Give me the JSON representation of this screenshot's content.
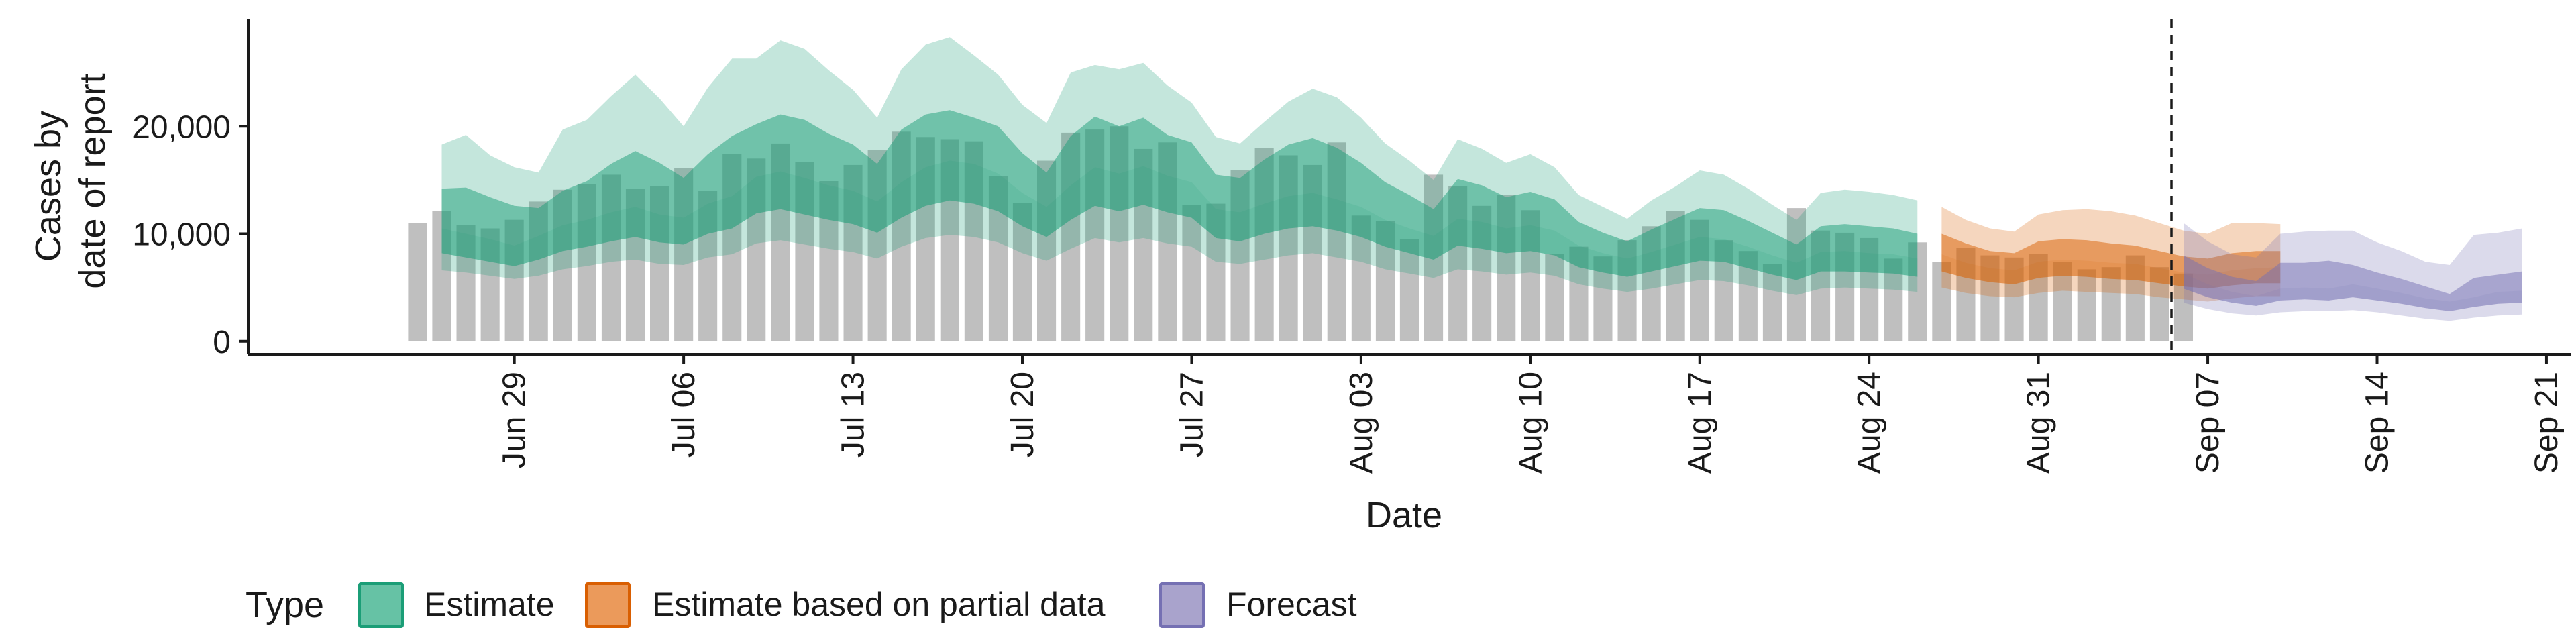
{
  "chart_data": {
    "type": "area",
    "xlabel": "Date",
    "ylabel_lines": [
      "Cases by",
      "date of report"
    ],
    "x_ticks": [
      "Jun 29",
      "Jul 06",
      "Jul 13",
      "Jul 20",
      "Jul 27",
      "Aug 03",
      "Aug 10",
      "Aug 17",
      "Aug 24",
      "Aug 31",
      "Sep 07",
      "Sep 14",
      "Sep 21"
    ],
    "y_ticks": [
      "0",
      "10,000",
      "20,000"
    ],
    "xlim": [
      "2020-06-18",
      "2020-09-22"
    ],
    "ylim": [
      -1200,
      30000
    ],
    "y_tick_values": [
      0,
      10000,
      20000
    ],
    "cutoff_date": "2020-09-05",
    "grid": false,
    "legend": {
      "title": "Type",
      "position": "bottom",
      "entries": [
        {
          "label": "Estimate",
          "fill": "#66c2a5",
          "stroke": "#1b9e77"
        },
        {
          "label": "Estimate based on partial data",
          "fill": "#eb9a5b",
          "stroke": "#d95f02"
        },
        {
          "label": "Forecast",
          "fill": "#a9a3cc",
          "stroke": "#7570b3"
        }
      ]
    },
    "colors": {
      "bars": "#bfbfbf",
      "estimate": "#1b9e77",
      "partial": "#d95f02",
      "forecast": "#7570b3",
      "axis": "#1a1a1a"
    },
    "bars": {
      "start_date": "2020-06-25",
      "values": [
        11000,
        12100,
        10800,
        10500,
        11300,
        13000,
        14100,
        14600,
        15500,
        14200,
        14400,
        16100,
        14000,
        17400,
        17000,
        18400,
        16700,
        14900,
        16400,
        17800,
        19500,
        19000,
        18800,
        18600,
        15400,
        12900,
        16800,
        19400,
        19700,
        20000,
        17900,
        18500,
        12700,
        12800,
        15900,
        18000,
        17300,
        16400,
        18500,
        11700,
        11200,
        9500,
        15500,
        14400,
        12600,
        13600,
        12200,
        8100,
        8800,
        7900,
        9400,
        10700,
        12100,
        11300,
        9400,
        8400,
        7200,
        12400,
        10300,
        10100,
        9600,
        7700,
        9200,
        7400,
        8700,
        8000,
        7800,
        8100,
        7400,
        6700,
        6900,
        8000,
        6900,
        6300
      ]
    },
    "series": [
      {
        "name": "Estimate",
        "start_date": "2020-06-26",
        "median": [
          10500,
          10000,
          9500,
          8900,
          9800,
          10800,
          11300,
          12000,
          12500,
          11800,
          11500,
          12800,
          13500,
          15300,
          15800,
          15200,
          14500,
          14000,
          13000,
          14800,
          16200,
          16800,
          16500,
          15600,
          13800,
          12500,
          14500,
          16200,
          15600,
          16300,
          15400,
          14800,
          12300,
          12000,
          12800,
          13500,
          13800,
          13200,
          12500,
          11300,
          10500,
          9800,
          11400,
          11100,
          10500,
          10800,
          10300,
          8900,
          8200,
          7700,
          8300,
          9000,
          9700,
          9500,
          8800,
          8000,
          7300,
          8300,
          8400,
          8200,
          8100,
          7700
        ],
        "lower50": [
          8200,
          7800,
          7400,
          7000,
          7600,
          8400,
          8800,
          9300,
          9700,
          9200,
          9000,
          10000,
          10500,
          11900,
          12300,
          11800,
          11300,
          10900,
          10100,
          11500,
          12600,
          13100,
          12800,
          12100,
          10700,
          9700,
          11300,
          12600,
          12100,
          12700,
          12000,
          11500,
          9600,
          9300,
          10000,
          10500,
          10700,
          10300,
          9700,
          8800,
          8200,
          7600,
          8900,
          8600,
          8200,
          8400,
          8000,
          6900,
          6400,
          6000,
          6500,
          7000,
          7500,
          7400,
          6800,
          6200,
          5700,
          6500,
          6500,
          6400,
          6300,
          6000
        ],
        "upper50": [
          14200,
          14300,
          13400,
          12600,
          12400,
          14000,
          14900,
          16500,
          17700,
          16600,
          15200,
          17400,
          19100,
          20200,
          21100,
          20600,
          19300,
          18300,
          16500,
          19700,
          21100,
          21500,
          20800,
          20000,
          17500,
          15700,
          19100,
          20900,
          20000,
          20800,
          19200,
          18500,
          15500,
          15200,
          16900,
          18300,
          18900,
          18000,
          16600,
          14800,
          13600,
          12300,
          15100,
          14500,
          13400,
          13900,
          13200,
          11100,
          10100,
          9300,
          10400,
          11400,
          12400,
          12200,
          11200,
          10100,
          9000,
          10700,
          10900,
          10700,
          10500,
          10000
        ],
        "lower90": [
          6600,
          6400,
          6100,
          5800,
          6100,
          6700,
          7000,
          7400,
          7600,
          7200,
          7100,
          7800,
          8100,
          9100,
          9400,
          9000,
          8600,
          8300,
          7700,
          8800,
          9600,
          9900,
          9700,
          9200,
          8200,
          7500,
          8600,
          9600,
          9200,
          9600,
          9100,
          8800,
          7400,
          7200,
          7600,
          8000,
          8200,
          7800,
          7400,
          6700,
          6300,
          5900,
          6700,
          6500,
          6200,
          6400,
          6100,
          5300,
          4900,
          4600,
          4900,
          5300,
          5700,
          5600,
          5200,
          4700,
          4300,
          4900,
          5000,
          4900,
          4800,
          4600
        ],
        "upper90": [
          18300,
          19200,
          17300,
          16200,
          15700,
          19700,
          20600,
          22800,
          24800,
          22600,
          20000,
          23600,
          26300,
          26300,
          28000,
          27200,
          25200,
          23400,
          20800,
          25300,
          27600,
          28300,
          26600,
          24800,
          22000,
          20300,
          25000,
          25700,
          25300,
          25900,
          23800,
          22200,
          19000,
          18400,
          20400,
          22300,
          23500,
          22700,
          20800,
          18400,
          16800,
          15000,
          18800,
          17900,
          16600,
          17400,
          16200,
          13600,
          12500,
          11400,
          13100,
          14400,
          15900,
          15500,
          14200,
          12700,
          11300,
          13800,
          14100,
          13900,
          13600,
          13100
        ]
      },
      {
        "name": "Estimate based on partial data",
        "start_date": "2020-08-27",
        "median": [
          8100,
          7300,
          6800,
          6600,
          7400,
          7600,
          7500,
          7300,
          7200,
          6800,
          6400,
          6200,
          6600,
          6800,
          6900
        ],
        "lower50": [
          6500,
          5900,
          5500,
          5300,
          5900,
          6100,
          6000,
          5800,
          5700,
          5400,
          5100,
          4900,
          5200,
          5400,
          5400
        ],
        "upper50": [
          10000,
          9100,
          8400,
          8200,
          9300,
          9500,
          9400,
          9100,
          8900,
          8400,
          7900,
          7700,
          8200,
          8400,
          8400
        ],
        "lower90": [
          5000,
          4500,
          4200,
          4100,
          4500,
          4700,
          4600,
          4500,
          4400,
          4100,
          3900,
          3700,
          4000,
          4200,
          4200
        ],
        "upper90": [
          12500,
          11300,
          10500,
          10200,
          11800,
          12200,
          12300,
          12100,
          11700,
          11000,
          10300,
          10000,
          11000,
          11000,
          10900
        ]
      },
      {
        "name": "Forecast",
        "start_date": "2020-09-06",
        "median": [
          6300,
          5300,
          4600,
          4200,
          4900,
          5000,
          4900,
          5300,
          4900,
          4500,
          4000,
          3700,
          4100,
          4600,
          4700
        ],
        "lower50": [
          4900,
          4100,
          3600,
          3300,
          3800,
          3900,
          3800,
          4100,
          3800,
          3500,
          3100,
          2800,
          3200,
          3500,
          3600
        ],
        "upper50": [
          8000,
          6800,
          6000,
          5600,
          7300,
          7300,
          7500,
          7100,
          6400,
          5800,
          5100,
          4400,
          5900,
          6200,
          6500
        ],
        "lower90": [
          3600,
          3000,
          2600,
          2400,
          2700,
          2800,
          2800,
          2900,
          2700,
          2400,
          2100,
          1900,
          2200,
          2400,
          2500
        ],
        "upper90": [
          11000,
          9300,
          8100,
          7800,
          10000,
          10200,
          10300,
          10300,
          9200,
          8400,
          7400,
          7100,
          9900,
          10100,
          10500
        ]
      }
    ]
  }
}
